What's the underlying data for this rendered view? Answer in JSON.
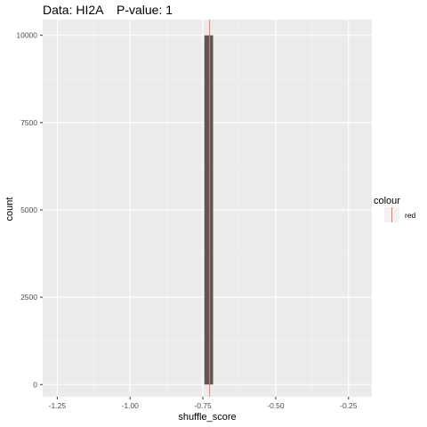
{
  "chart_data": {
    "type": "bar",
    "title_data_label": "Data: HI2A",
    "title_pvalue_label": "P-value: 1",
    "xlabel": "shuffle_score",
    "ylabel": "count",
    "xlim": [
      -1.3,
      -0.17
    ],
    "ylim": [
      -350,
      10450
    ],
    "x_ticks": [
      -1.25,
      -1.0,
      -0.75,
      -0.5,
      -0.25
    ],
    "x_tick_labels": [
      "-1.25",
      "-1.00",
      "-0.75",
      "-0.50",
      "-0.25"
    ],
    "y_ticks": [
      0,
      2500,
      5000,
      7500,
      10000
    ],
    "y_tick_labels": [
      "0",
      "2500",
      "5000",
      "7500",
      "10000"
    ],
    "bins": [
      {
        "x_min": -0.745,
        "x_max": -0.715,
        "count": 10000
      }
    ],
    "vline": {
      "x": -0.727,
      "color": "#F8766D"
    },
    "legend": {
      "title": "colour",
      "entries": [
        "red"
      ],
      "placement": "right"
    },
    "grid": true,
    "colors": {
      "panel_bg": "#EBEBEB",
      "grid_major": "#FFFFFF",
      "grid_minor": "#F5F5F5",
      "bar_fill": "#595959",
      "line": "#F8766D"
    }
  }
}
